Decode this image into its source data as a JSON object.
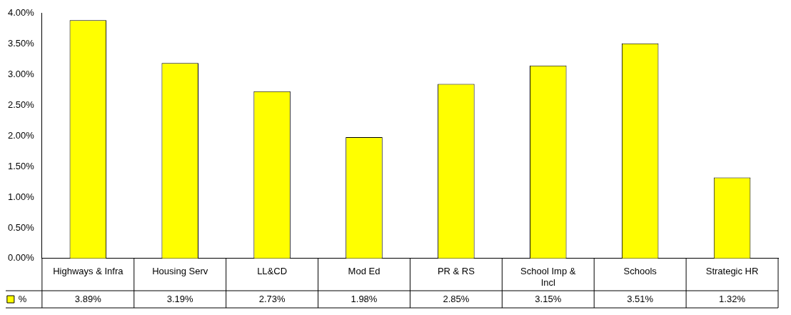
{
  "chart_data": {
    "type": "bar",
    "categories": [
      "Highways & Infra",
      "Housing Serv",
      "LL&CD",
      "Mod Ed",
      "PR & RS",
      "School Imp & Incl",
      "Schools",
      "Strategic HR"
    ],
    "series": [
      {
        "name": "%",
        "color": "#ffff00",
        "values": [
          3.89,
          3.19,
          2.73,
          1.98,
          2.85,
          3.15,
          3.51,
          1.32
        ],
        "value_labels": [
          "3.89%",
          "3.19%",
          "2.73%",
          "1.98%",
          "2.85%",
          "3.15%",
          "3.51%",
          "1.32%"
        ]
      }
    ],
    "ylim": [
      0,
      4
    ],
    "yticks": [
      {
        "value": 0,
        "label": "0.00%"
      },
      {
        "value": 0.5,
        "label": "0.50%"
      },
      {
        "value": 1,
        "label": "1.00%"
      },
      {
        "value": 1.5,
        "label": "1.50%"
      },
      {
        "value": 2,
        "label": "2.00%"
      },
      {
        "value": 2.5,
        "label": "2.50%"
      },
      {
        "value": 3,
        "label": "3.00%"
      },
      {
        "value": 3.5,
        "label": "3.50%"
      },
      {
        "value": 4,
        "label": "4.00%"
      }
    ],
    "grid": false,
    "legend": "bottom left"
  }
}
